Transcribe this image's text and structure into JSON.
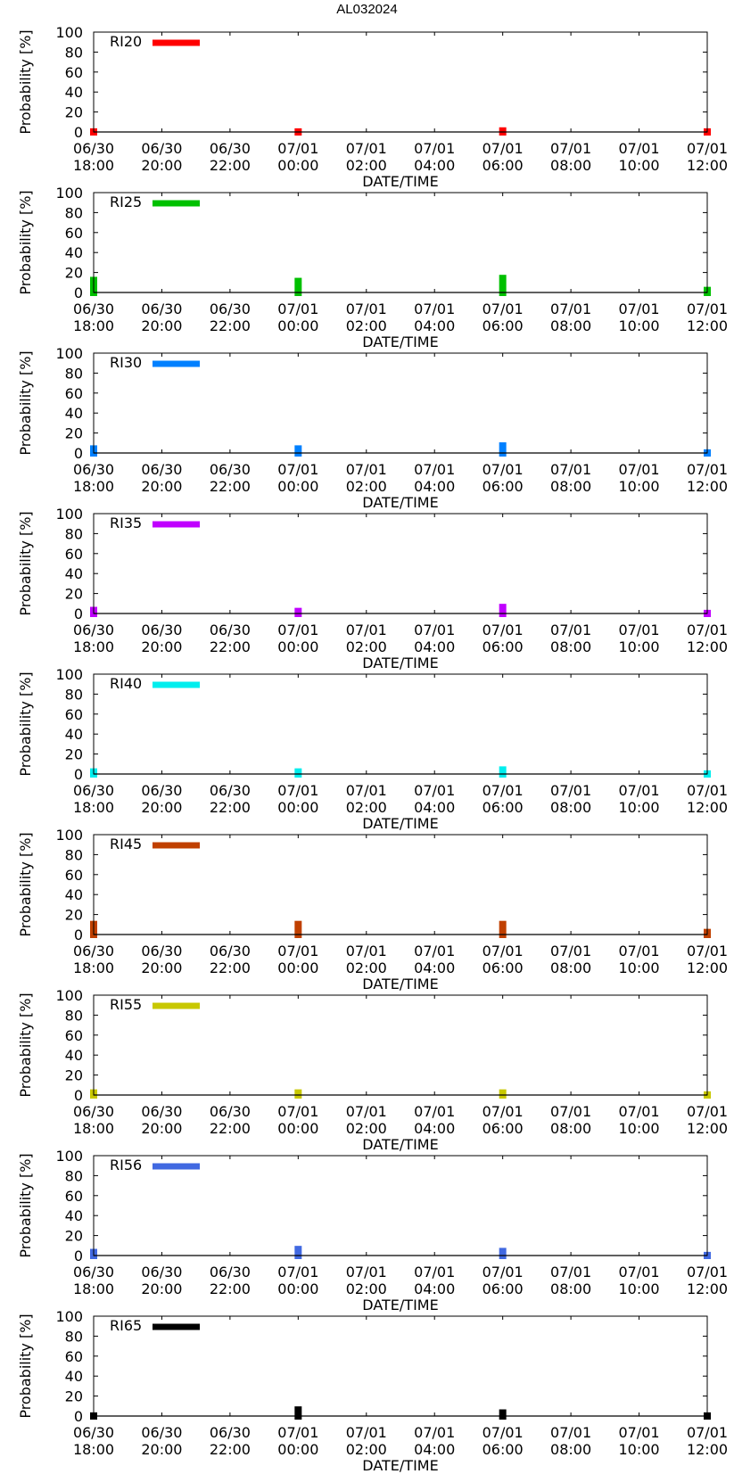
{
  "figure": {
    "title": "AL032024"
  },
  "axes": {
    "ylabel": "Probability [%]",
    "xlabel": "DATE/TIME",
    "ylim": [
      0,
      100
    ],
    "yticks": [
      "0",
      "20",
      "40",
      "60",
      "80",
      "100"
    ],
    "xlim_hours": [
      0,
      18
    ],
    "xticks": [
      {
        "hour": 0,
        "date": "06/30",
        "time": "18:00"
      },
      {
        "hour": 2,
        "date": "06/30",
        "time": "20:00"
      },
      {
        "hour": 4,
        "date": "06/30",
        "time": "22:00"
      },
      {
        "hour": 6,
        "date": "07/01",
        "time": "00:00"
      },
      {
        "hour": 8,
        "date": "07/01",
        "time": "02:00"
      },
      {
        "hour": 10,
        "date": "07/01",
        "time": "04:00"
      },
      {
        "hour": 12,
        "date": "07/01",
        "time": "06:00"
      },
      {
        "hour": 14,
        "date": "07/01",
        "time": "08:00"
      },
      {
        "hour": 16,
        "date": "07/01",
        "time": "10:00"
      },
      {
        "hour": 18,
        "date": "07/01",
        "time": "12:00"
      }
    ]
  },
  "chart_data": [
    {
      "type": "bar",
      "title": "",
      "legend": "RI20",
      "legend_location": "top-left",
      "color": "#ff0000",
      "xlabel": "DATE/TIME",
      "ylabel": "Probability [%]",
      "ylim": [
        0,
        100
      ],
      "x_hours": [
        0,
        6,
        12,
        18
      ],
      "values": [
        1,
        1,
        2,
        1
      ]
    },
    {
      "type": "bar",
      "title": "",
      "legend": "RI25",
      "legend_location": "top-left",
      "color": "#00c000",
      "xlabel": "DATE/TIME",
      "ylabel": "Probability [%]",
      "ylim": [
        0,
        100
      ],
      "x_hours": [
        0,
        6,
        12,
        18
      ],
      "values": [
        13,
        12,
        15,
        3
      ]
    },
    {
      "type": "bar",
      "title": "",
      "legend": "RI30",
      "legend_location": "top-left",
      "color": "#0080ff",
      "xlabel": "DATE/TIME",
      "ylabel": "Probability [%]",
      "ylim": [
        0,
        100
      ],
      "x_hours": [
        0,
        6,
        12,
        18
      ],
      "values": [
        5,
        5,
        8,
        1
      ]
    },
    {
      "type": "bar",
      "title": "",
      "legend": "RI35",
      "legend_location": "top-left",
      "color": "#c000ff",
      "xlabel": "DATE/TIME",
      "ylabel": "Probability [%]",
      "ylim": [
        0,
        100
      ],
      "x_hours": [
        0,
        6,
        12,
        18
      ],
      "values": [
        4,
        3,
        7,
        1
      ]
    },
    {
      "type": "bar",
      "title": "",
      "legend": "RI40",
      "legend_location": "top-left",
      "color": "#00eeee",
      "xlabel": "DATE/TIME",
      "ylabel": "Probability [%]",
      "ylim": [
        0,
        100
      ],
      "x_hours": [
        0,
        6,
        12,
        18
      ],
      "values": [
        3,
        3,
        5,
        1
      ]
    },
    {
      "type": "bar",
      "title": "",
      "legend": "RI45",
      "legend_location": "top-left",
      "color": "#c04000",
      "xlabel": "DATE/TIME",
      "ylabel": "Probability [%]",
      "ylim": [
        0,
        100
      ],
      "x_hours": [
        0,
        6,
        12,
        18
      ],
      "values": [
        11,
        11,
        11,
        3
      ]
    },
    {
      "type": "bar",
      "title": "",
      "legend": "RI55",
      "legend_location": "top-left",
      "color": "#c8c800",
      "xlabel": "DATE/TIME",
      "ylabel": "Probability [%]",
      "ylim": [
        0,
        100
      ],
      "x_hours": [
        0,
        6,
        12,
        18
      ],
      "values": [
        3,
        3,
        3,
        1
      ]
    },
    {
      "type": "bar",
      "title": "",
      "legend": "RI56",
      "legend_location": "top-left",
      "color": "#4169e1",
      "xlabel": "DATE/TIME",
      "ylabel": "Probability [%]",
      "ylim": [
        0,
        100
      ],
      "x_hours": [
        0,
        6,
        12,
        18
      ],
      "values": [
        4,
        7,
        5,
        1
      ]
    },
    {
      "type": "bar",
      "title": "",
      "legend": "RI65",
      "legend_location": "top-left",
      "color": "#000000",
      "xlabel": "DATE/TIME",
      "ylabel": "Probability [%]",
      "ylim": [
        0,
        100
      ],
      "x_hours": [
        0,
        6,
        12,
        18
      ],
      "values": [
        1,
        7,
        4,
        1
      ]
    }
  ]
}
